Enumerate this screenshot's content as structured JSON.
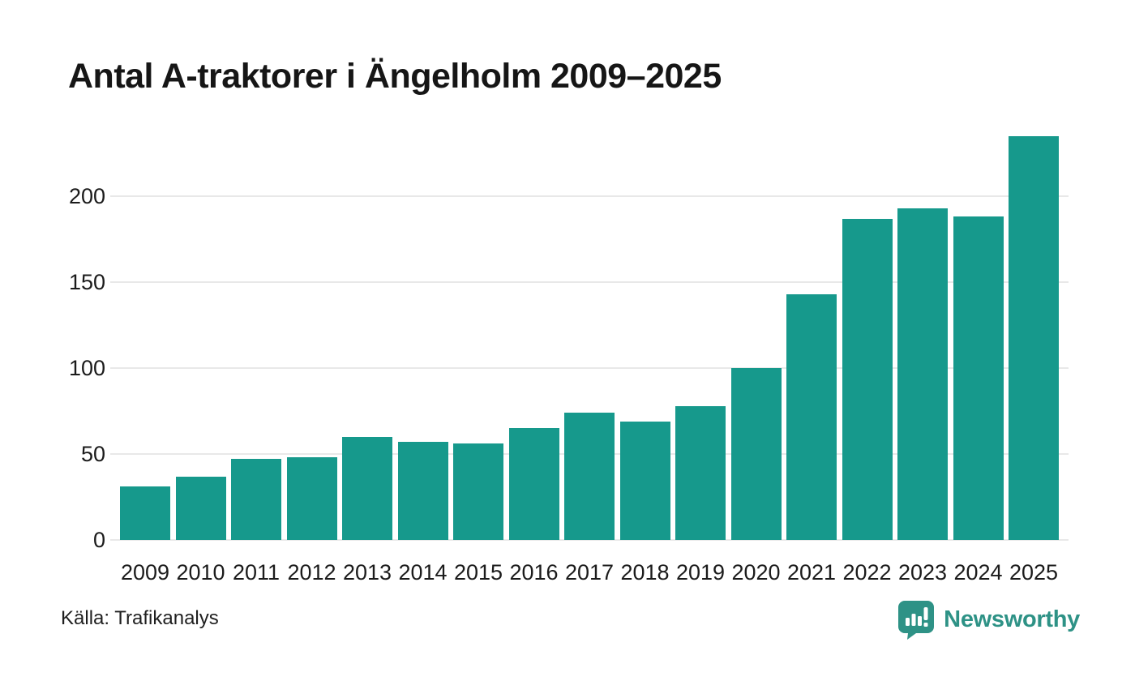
{
  "title": "Antal A-traktorer i Ängelholm 2009–2025",
  "source": "Källa: Trafikanalys",
  "branding": {
    "name": "Newsworthy",
    "logo_icon": "bar-chart-speech-bubble-icon"
  },
  "colors": {
    "bar": "#16998c",
    "grid": "#e8e8e8",
    "title_text": "#161616",
    "axis_text": "#1b1b1b",
    "brand_teal": "#2e9286",
    "background": "#ffffff"
  },
  "chart_data": {
    "type": "bar",
    "title": "Antal A-traktorer i Ängelholm 2009–2025",
    "categories": [
      "2009",
      "2010",
      "2011",
      "2012",
      "2013",
      "2014",
      "2015",
      "2016",
      "2017",
      "2018",
      "2019",
      "2020",
      "2021",
      "2022",
      "2023",
      "2024",
      "2025"
    ],
    "values": [
      31,
      37,
      47,
      48,
      60,
      57,
      56,
      65,
      74,
      69,
      78,
      100,
      143,
      187,
      193,
      188,
      235
    ],
    "xlabel": "",
    "ylabel": "",
    "yticks": [
      0,
      50,
      100,
      150,
      200
    ],
    "ylim": [
      0,
      243
    ],
    "grid": "horizontal",
    "legend": "none",
    "bar_color": "#16998c"
  }
}
